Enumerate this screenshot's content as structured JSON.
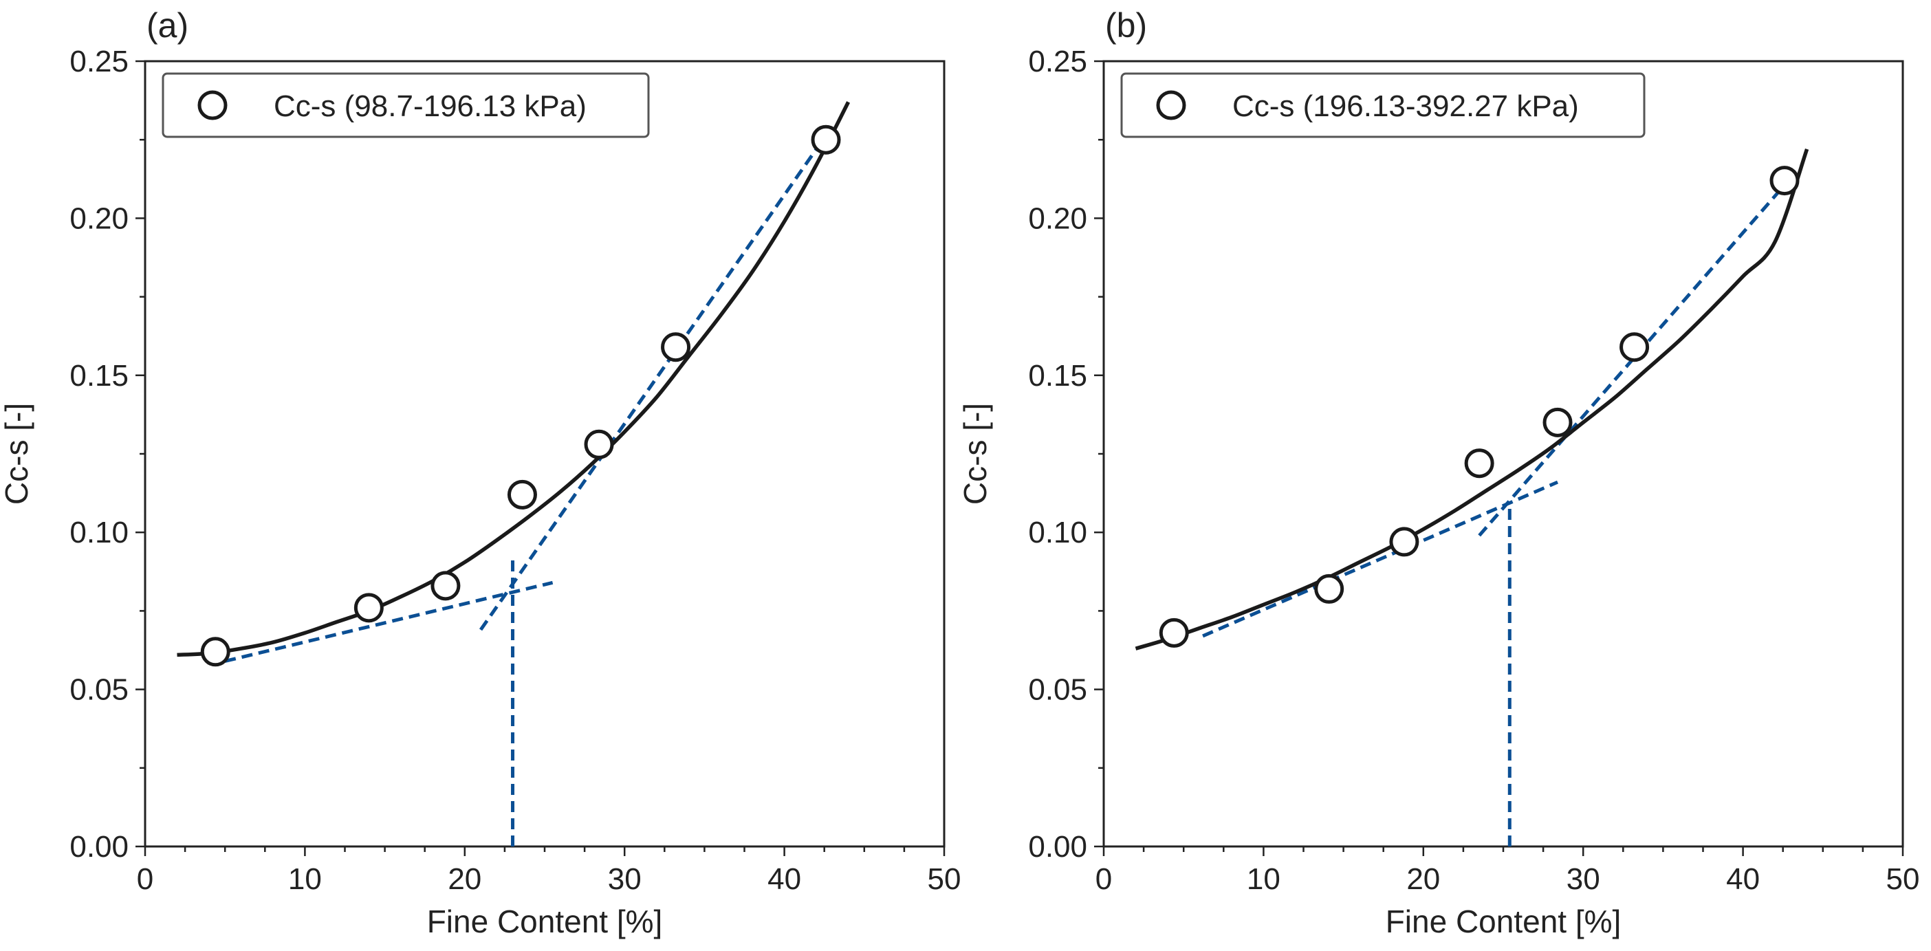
{
  "figure": {
    "panel_count": 2
  },
  "colors": {
    "axis": "#222222",
    "fit_curve": "#1a1a1a",
    "construction": "#0b4f94",
    "marker_face": "#ffffff"
  },
  "chart_data": [
    {
      "panel_label": "(a)",
      "type": "scatter",
      "xlabel": "Fine Content [%]",
      "ylabel": "Cc-s [-]",
      "xlim": [
        0,
        50
      ],
      "ylim": [
        0,
        0.25
      ],
      "xticks": [
        0,
        10,
        20,
        30,
        40,
        50
      ],
      "xtick_labels": [
        "0",
        "10",
        "20",
        "30",
        "40",
        "50"
      ],
      "yticks": [
        0,
        0.05,
        0.1,
        0.15,
        0.2,
        0.25
      ],
      "ytick_labels": [
        "0.00",
        "0.05",
        "0.10",
        "0.15",
        "0.20",
        "0.25"
      ],
      "grid": false,
      "legend": {
        "location": "top-left",
        "entries": [
          "Cc-s (98.7-196.13 kPa)"
        ]
      },
      "series": [
        {
          "name": "Cc-s (98.7-196.13 kPa)",
          "marker": "open-circle",
          "x": [
            4.4,
            14.0,
            18.8,
            23.6,
            28.4,
            33.2,
            42.6
          ],
          "y": [
            0.062,
            0.076,
            0.083,
            0.112,
            0.128,
            0.159,
            0.225
          ]
        }
      ],
      "fit_curve": {
        "type": "polynomial",
        "x_range": [
          2,
          44
        ],
        "x": [
          2,
          4,
          6,
          8,
          10,
          12,
          14,
          16,
          18,
          20,
          22,
          24,
          26,
          28,
          30,
          32,
          34,
          36,
          38,
          40,
          42,
          44
        ],
        "y": [
          0.061,
          0.0615,
          0.063,
          0.065,
          0.068,
          0.0715,
          0.075,
          0.0795,
          0.0845,
          0.0905,
          0.0975,
          0.105,
          0.113,
          0.122,
          0.132,
          0.143,
          0.156,
          0.169,
          0.183,
          0.199,
          0.217,
          0.237
        ]
      },
      "construction_lines": {
        "low_tangent": {
          "x": [
            5.0,
            25.5
          ],
          "y": [
            0.059,
            0.084
          ]
        },
        "high_tangent": {
          "x": [
            21.0,
            42.0
          ],
          "y": [
            0.069,
            0.222
          ]
        },
        "threshold": {
          "x": 23.0,
          "y_range": [
            0,
            0.092
          ]
        }
      }
    },
    {
      "panel_label": "(b)",
      "type": "scatter",
      "xlabel": "Fine Content [%]",
      "ylabel": "Cc-s [-]",
      "xlim": [
        0,
        50
      ],
      "ylim": [
        0,
        0.25
      ],
      "xticks": [
        0,
        10,
        20,
        30,
        40,
        50
      ],
      "xtick_labels": [
        "0",
        "10",
        "20",
        "30",
        "40",
        "50"
      ],
      "yticks": [
        0,
        0.05,
        0.1,
        0.15,
        0.2,
        0.25
      ],
      "ytick_labels": [
        "0.00",
        "0.05",
        "0.10",
        "0.15",
        "0.20",
        "0.25"
      ],
      "grid": false,
      "legend": {
        "location": "top-left",
        "entries": [
          "Cc-s (196.13-392.27 kPa)"
        ]
      },
      "series": [
        {
          "name": "Cc-s (196.13-392.27 kPa)",
          "marker": "open-circle",
          "x": [
            4.4,
            14.1,
            18.8,
            23.5,
            28.4,
            33.2,
            42.6
          ],
          "y": [
            0.068,
            0.082,
            0.097,
            0.122,
            0.135,
            0.159,
            0.212
          ]
        }
      ],
      "fit_curve": {
        "type": "polynomial",
        "x_range": [
          2,
          44
        ],
        "x": [
          2,
          4,
          6,
          8,
          10,
          12,
          14,
          16,
          18,
          20,
          22,
          24,
          26,
          28,
          30,
          32,
          34,
          36,
          38,
          40,
          42,
          44
        ],
        "y": [
          0.063,
          0.066,
          0.0695,
          0.073,
          0.077,
          0.081,
          0.0855,
          0.0905,
          0.0955,
          0.101,
          0.107,
          0.1135,
          0.12,
          0.127,
          0.135,
          0.143,
          0.152,
          0.161,
          0.171,
          0.1815,
          0.1925,
          0.222
        ]
      },
      "construction_lines": {
        "low_tangent": {
          "x": [
            6.2,
            28.4
          ],
          "y": [
            0.067,
            0.116
          ]
        },
        "high_tangent": {
          "x": [
            23.5,
            42.5
          ],
          "y": [
            0.099,
            0.21
          ]
        },
        "threshold": {
          "x": 25.4,
          "y_range": [
            0,
            0.108
          ]
        }
      }
    }
  ]
}
